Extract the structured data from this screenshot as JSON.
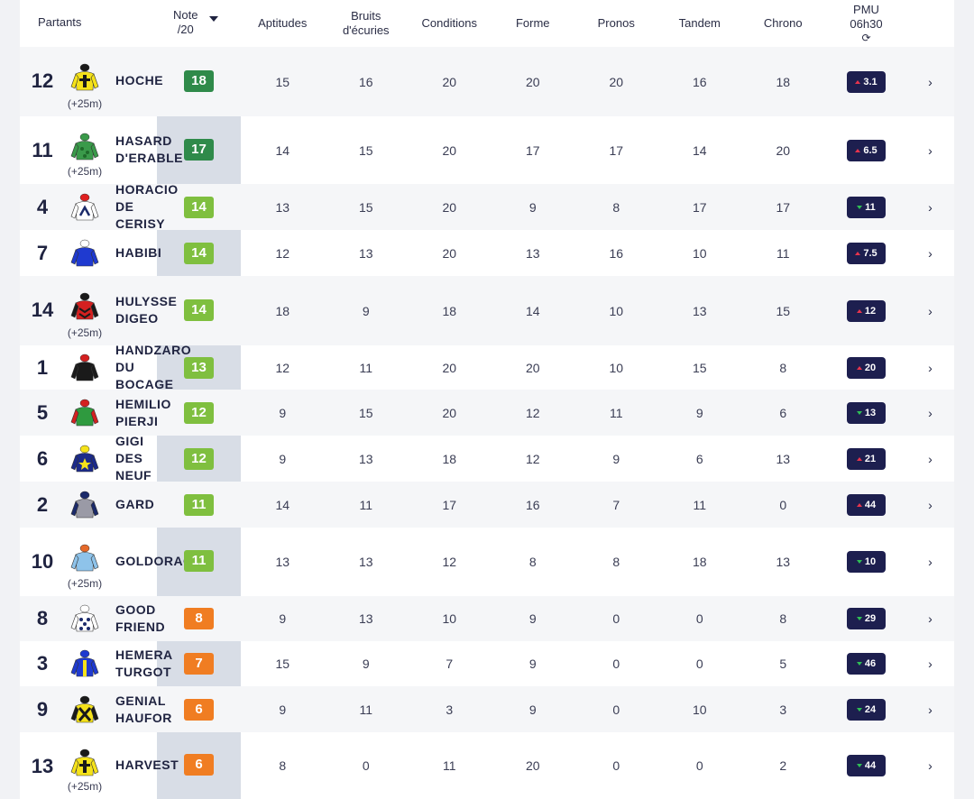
{
  "header": {
    "partants": "Partants",
    "note_line1": "Note",
    "note_line2": "/20",
    "aptitudes": "Aptitudes",
    "bruits_line1": "Bruits",
    "bruits_line2": "d'écuries",
    "conditions": "Conditions",
    "forme": "Forme",
    "pronos": "Pronos",
    "tandem": "Tandem",
    "chrono": "Chrono",
    "pmu_line1": "PMU",
    "pmu_line2": "06h30",
    "refresh_glyph": "⟳"
  },
  "colors": {
    "note_dark_green": "#2f8a4a",
    "note_green": "#7fbf3f",
    "note_orange": "#f07d22",
    "pmu_bg": "#1d1f4f",
    "trend_up": "#e8344d",
    "trend_down": "#2fbf55",
    "note_column_bg": "#d8dde6"
  },
  "arrow_glyph": "›",
  "rows": [
    {
      "num": "12",
      "name": "HOCHE",
      "dist": "(+25m)",
      "note": "18",
      "note_level": "dark",
      "silk": "yellow-cross",
      "aptitudes": "15",
      "bruits": "16",
      "conditions": "20",
      "forme": "20",
      "pronos": "20",
      "tandem": "16",
      "chrono": "18",
      "pmu": "3.1",
      "trend": "up"
    },
    {
      "num": "11",
      "name": "HASARD\nD'ERABLE",
      "dist": "(+25m)",
      "note": "17",
      "note_level": "dark",
      "silk": "green-pattern",
      "aptitudes": "14",
      "bruits": "15",
      "conditions": "20",
      "forme": "17",
      "pronos": "17",
      "tandem": "14",
      "chrono": "20",
      "pmu": "6.5",
      "trend": "up"
    },
    {
      "num": "4",
      "name": "HORACIO\nDE\nCERISY",
      "dist": "",
      "note": "14",
      "note_level": "green",
      "silk": "white-chevron",
      "aptitudes": "13",
      "bruits": "15",
      "conditions": "20",
      "forme": "9",
      "pronos": "8",
      "tandem": "17",
      "chrono": "17",
      "pmu": "11",
      "trend": "down"
    },
    {
      "num": "7",
      "name": "HABIBI",
      "dist": "",
      "note": "14",
      "note_level": "green",
      "silk": "blue",
      "aptitudes": "12",
      "bruits": "13",
      "conditions": "20",
      "forme": "13",
      "pronos": "16",
      "tandem": "10",
      "chrono": "11",
      "pmu": "7.5",
      "trend": "up"
    },
    {
      "num": "14",
      "name": "HULYSSE\nDIGEO",
      "dist": "(+25m)",
      "note": "14",
      "note_level": "green",
      "silk": "red-chevrons",
      "aptitudes": "18",
      "bruits": "9",
      "conditions": "18",
      "forme": "14",
      "pronos": "10",
      "tandem": "13",
      "chrono": "15",
      "pmu": "12",
      "trend": "up"
    },
    {
      "num": "1",
      "name": "HANDZARO\nDU\nBOCAGE",
      "dist": "",
      "note": "13",
      "note_level": "green",
      "silk": "black-red",
      "aptitudes": "12",
      "bruits": "11",
      "conditions": "20",
      "forme": "20",
      "pronos": "10",
      "tandem": "15",
      "chrono": "8",
      "pmu": "20",
      "trend": "up"
    },
    {
      "num": "5",
      "name": "HEMILIO\nPIERJI",
      "dist": "",
      "note": "12",
      "note_level": "green",
      "silk": "green-red",
      "aptitudes": "9",
      "bruits": "15",
      "conditions": "20",
      "forme": "12",
      "pronos": "11",
      "tandem": "9",
      "chrono": "6",
      "pmu": "13",
      "trend": "down"
    },
    {
      "num": "6",
      "name": "GIGI\nDES\nNEUF\nCLOS",
      "dist": "",
      "note": "12",
      "note_level": "green",
      "silk": "navy-star",
      "aptitudes": "9",
      "bruits": "13",
      "conditions": "18",
      "forme": "12",
      "pronos": "9",
      "tandem": "6",
      "chrono": "13",
      "pmu": "21",
      "trend": "up"
    },
    {
      "num": "2",
      "name": "GARD",
      "dist": "",
      "note": "11",
      "note_level": "green",
      "silk": "grey-navy",
      "aptitudes": "14",
      "bruits": "11",
      "conditions": "17",
      "forme": "16",
      "pronos": "7",
      "tandem": "11",
      "chrono": "0",
      "pmu": "44",
      "trend": "up"
    },
    {
      "num": "10",
      "name": "GOLDORAC",
      "dist": "(+25m)",
      "note": "11",
      "note_level": "green",
      "silk": "light-blue",
      "aptitudes": "13",
      "bruits": "13",
      "conditions": "12",
      "forme": "8",
      "pronos": "8",
      "tandem": "18",
      "chrono": "13",
      "pmu": "10",
      "trend": "down"
    },
    {
      "num": "8",
      "name": "GOOD\nFRIEND",
      "dist": "",
      "note": "8",
      "note_level": "orange",
      "silk": "white-stars",
      "aptitudes": "9",
      "bruits": "13",
      "conditions": "10",
      "forme": "9",
      "pronos": "0",
      "tandem": "0",
      "chrono": "8",
      "pmu": "29",
      "trend": "down"
    },
    {
      "num": "3",
      "name": "HEMERA\nTURGOT",
      "dist": "",
      "note": "7",
      "note_level": "orange",
      "silk": "blue-yellow",
      "aptitudes": "15",
      "bruits": "9",
      "conditions": "7",
      "forme": "9",
      "pronos": "0",
      "tandem": "0",
      "chrono": "5",
      "pmu": "46",
      "trend": "down"
    },
    {
      "num": "9",
      "name": "GENIAL\nHAUFOR",
      "dist": "",
      "note": "6",
      "note_level": "orange",
      "silk": "yellow-cross-x",
      "aptitudes": "9",
      "bruits": "11",
      "conditions": "3",
      "forme": "9",
      "pronos": "0",
      "tandem": "10",
      "chrono": "3",
      "pmu": "24",
      "trend": "down"
    },
    {
      "num": "13",
      "name": "HARVEST",
      "dist": "(+25m)",
      "note": "6",
      "note_level": "orange",
      "silk": "yellow-cross",
      "aptitudes": "8",
      "bruits": "0",
      "conditions": "11",
      "forme": "20",
      "pronos": "0",
      "tandem": "0",
      "chrono": "2",
      "pmu": "44",
      "trend": "down"
    }
  ]
}
